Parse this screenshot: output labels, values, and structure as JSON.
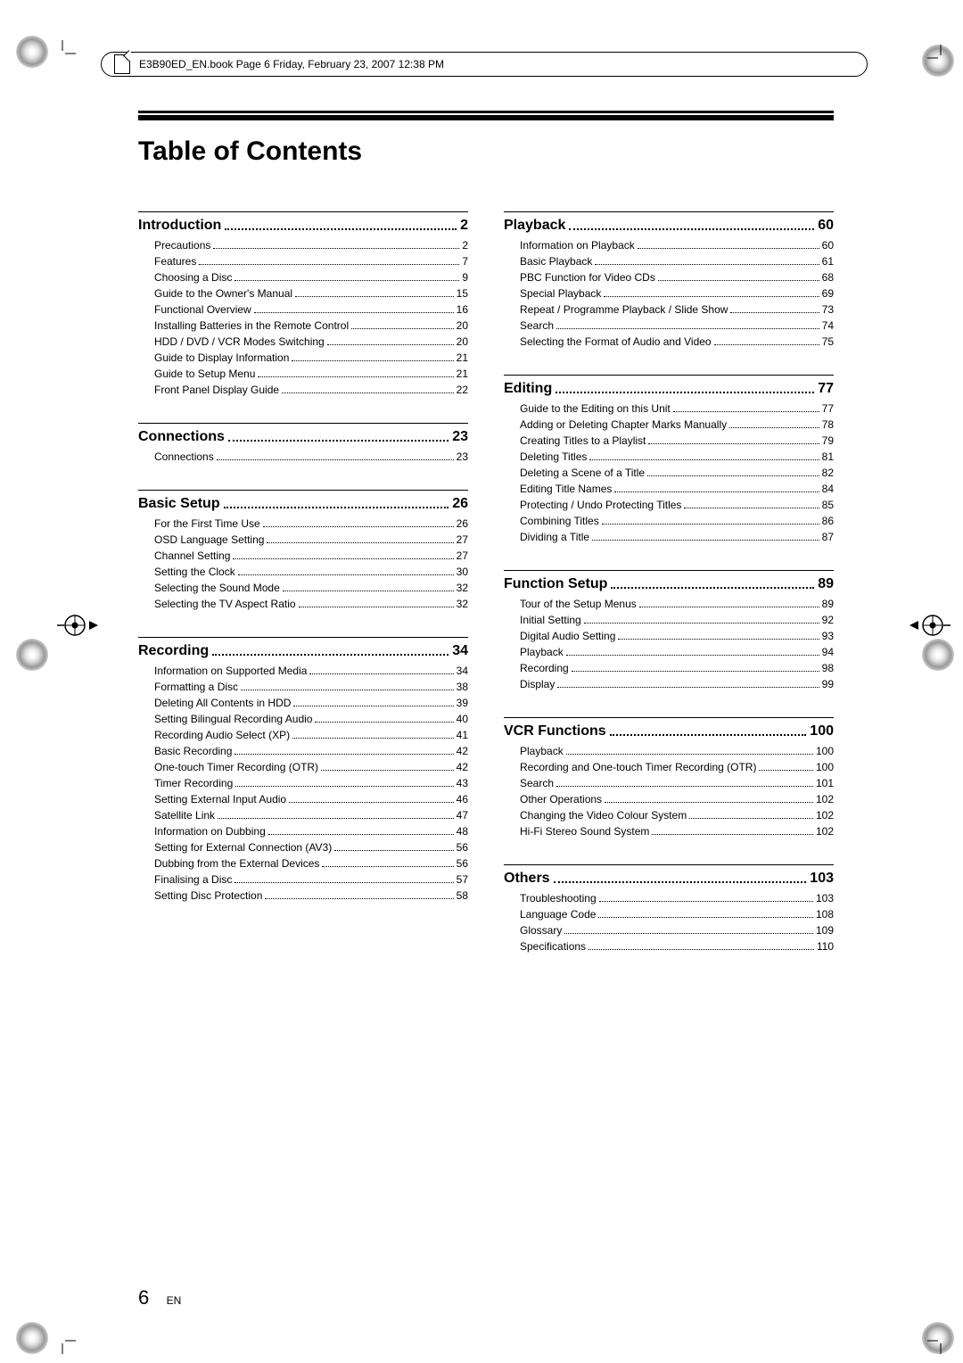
{
  "printHeader": "E3B90ED_EN.book  Page 6  Friday, February 23, 2007  12:38 PM",
  "title": "Table of Contents",
  "pageNumber": "6",
  "pageLang": "EN",
  "leftSections": [
    {
      "title": "Introduction",
      "page": "2",
      "entries": [
        {
          "label": "Precautions",
          "page": "2"
        },
        {
          "label": "Features",
          "page": "7"
        },
        {
          "label": "Choosing a Disc",
          "page": "9"
        },
        {
          "label": "Guide to the Owner's Manual",
          "page": "15"
        },
        {
          "label": "Functional Overview",
          "page": "16"
        },
        {
          "label": "Installing Batteries in the Remote Control",
          "page": "20"
        },
        {
          "label": "HDD / DVD / VCR Modes Switching",
          "page": "20"
        },
        {
          "label": "Guide to Display Information",
          "page": "21"
        },
        {
          "label": "Guide to Setup Menu",
          "page": "21"
        },
        {
          "label": "Front Panel Display Guide",
          "page": "22"
        }
      ]
    },
    {
      "title": "Connections",
      "page": "23",
      "entries": [
        {
          "label": "Connections",
          "page": "23"
        }
      ]
    },
    {
      "title": "Basic Setup",
      "page": "26",
      "entries": [
        {
          "label": "For the First Time Use",
          "page": "26"
        },
        {
          "label": "OSD Language Setting",
          "page": "27"
        },
        {
          "label": "Channel Setting",
          "page": "27"
        },
        {
          "label": "Setting the Clock",
          "page": "30"
        },
        {
          "label": "Selecting the Sound Mode",
          "page": "32"
        },
        {
          "label": "Selecting the TV Aspect Ratio",
          "page": "32"
        }
      ]
    },
    {
      "title": "Recording",
      "page": "34",
      "entries": [
        {
          "label": "Information on Supported Media",
          "page": "34"
        },
        {
          "label": "Formatting a Disc",
          "page": "38"
        },
        {
          "label": "Deleting All Contents in HDD",
          "page": "39"
        },
        {
          "label": "Setting Bilingual Recording Audio",
          "page": "40"
        },
        {
          "label": "Recording Audio Select (XP)",
          "page": "41"
        },
        {
          "label": "Basic Recording",
          "page": "42"
        },
        {
          "label": "One-touch Timer Recording (OTR)",
          "page": "42"
        },
        {
          "label": "Timer Recording",
          "page": "43"
        },
        {
          "label": "Setting External Input Audio",
          "page": "46"
        },
        {
          "label": "Satellite Link",
          "page": "47"
        },
        {
          "label": "Information on Dubbing",
          "page": "48"
        },
        {
          "label": "Setting for External Connection (AV3)",
          "page": "56"
        },
        {
          "label": "Dubbing from the External Devices",
          "page": "56"
        },
        {
          "label": "Finalising a Disc",
          "page": "57"
        },
        {
          "label": "Setting Disc Protection",
          "page": "58"
        }
      ]
    }
  ],
  "rightSections": [
    {
      "title": "Playback",
      "page": "60",
      "entries": [
        {
          "label": "Information on Playback",
          "page": "60"
        },
        {
          "label": "Basic Playback",
          "page": "61"
        },
        {
          "label": "PBC Function for Video CDs",
          "page": "68"
        },
        {
          "label": "Special Playback",
          "page": "69"
        },
        {
          "label": "Repeat / Programme Playback / Slide Show",
          "page": "73"
        },
        {
          "label": "Search",
          "page": "74"
        },
        {
          "label": "Selecting the Format of Audio and Video",
          "page": "75"
        }
      ]
    },
    {
      "title": "Editing",
      "page": "77",
      "entries": [
        {
          "label": "Guide to the Editing on this Unit",
          "page": "77"
        },
        {
          "label": "Adding or Deleting Chapter Marks Manually",
          "page": "78"
        },
        {
          "label": "Creating Titles to a Playlist",
          "page": "79"
        },
        {
          "label": "Deleting Titles",
          "page": "81"
        },
        {
          "label": "Deleting a Scene of a Title",
          "page": "82"
        },
        {
          "label": "Editing Title Names",
          "page": "84"
        },
        {
          "label": "Protecting / Undo Protecting Titles",
          "page": "85"
        },
        {
          "label": "Combining Titles",
          "page": "86"
        },
        {
          "label": "Dividing a Title",
          "page": "87"
        }
      ]
    },
    {
      "title": "Function Setup",
      "page": "89",
      "entries": [
        {
          "label": "Tour of the Setup Menus",
          "page": "89"
        },
        {
          "label": "Initial Setting",
          "page": "92"
        },
        {
          "label": "Digital Audio Setting",
          "page": "93"
        },
        {
          "label": "Playback",
          "page": "94"
        },
        {
          "label": "Recording",
          "page": "98"
        },
        {
          "label": "Display",
          "page": "99"
        }
      ]
    },
    {
      "title": "VCR Functions",
      "page": "100",
      "entries": [
        {
          "label": "Playback",
          "page": "100"
        },
        {
          "label": "Recording and One-touch Timer Recording (OTR)",
          "page": "100",
          "multi": true
        },
        {
          "label": "Search",
          "page": "101"
        },
        {
          "label": "Other Operations",
          "page": "102"
        },
        {
          "label": "Changing the Video Colour System",
          "page": "102"
        },
        {
          "label": "Hi-Fi Stereo Sound System",
          "page": "102"
        }
      ]
    },
    {
      "title": "Others",
      "page": "103",
      "entries": [
        {
          "label": "Troubleshooting",
          "page": "103"
        },
        {
          "label": "Language Code",
          "page": "108"
        },
        {
          "label": "Glossary",
          "page": "109"
        },
        {
          "label": "Specifications",
          "page": "110"
        }
      ]
    }
  ]
}
